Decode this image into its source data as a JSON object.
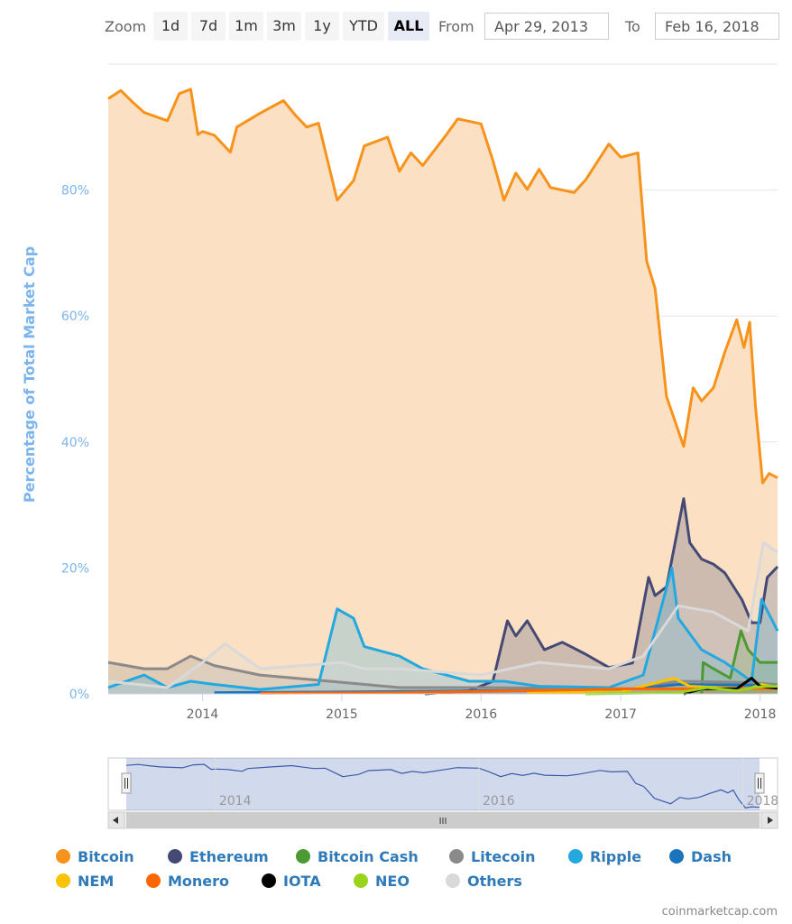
{
  "range_selector": {
    "zoom_label": "Zoom",
    "buttons": [
      "1d",
      "7d",
      "1m",
      "3m",
      "1y",
      "YTD",
      "ALL"
    ],
    "active": "ALL",
    "from_label": "From",
    "from_value": "Apr 29, 2013",
    "to_label": "To",
    "to_value": "Feb 16, 2018"
  },
  "credit": "coinmarketcap.com",
  "chart_data": {
    "type": "area",
    "title": "",
    "ylabel": "Percentage of Total Market Cap",
    "xlabel": "",
    "ylim": [
      0,
      100
    ],
    "xlim": [
      "2013-04-29",
      "2018-02-16"
    ],
    "y_ticks": [
      "0%",
      "20%",
      "40%",
      "60%",
      "80%"
    ],
    "y_tick_values": [
      0,
      20,
      40,
      60,
      80
    ],
    "x_ticks": [
      "2014",
      "2015",
      "2016",
      "2017",
      "2018"
    ],
    "navigator_ticks": [
      "2014",
      "2016",
      "2018"
    ],
    "grid": true,
    "legend_position": "bottom",
    "series": [
      {
        "name": "Bitcoin",
        "color": "#f7931a",
        "fill": "#fce0c3",
        "points": [
          [
            "2013-04-29",
            94.5
          ],
          [
            "2013-06-01",
            95.8
          ],
          [
            "2013-07-01",
            94
          ],
          [
            "2013-08-01",
            92.3
          ],
          [
            "2013-10-01",
            91
          ],
          [
            "2013-11-01",
            95.3
          ],
          [
            "2013-12-01",
            96
          ],
          [
            "2013-12-20",
            88.8
          ],
          [
            "2014-01-01",
            89.3
          ],
          [
            "2014-02-01",
            88.7
          ],
          [
            "2014-03-15",
            86
          ],
          [
            "2014-04-01",
            90
          ],
          [
            "2014-06-01",
            92.2
          ],
          [
            "2014-08-01",
            94.2
          ],
          [
            "2014-09-01",
            91.9
          ],
          [
            "2014-10-01",
            90
          ],
          [
            "2014-11-01",
            90.6
          ],
          [
            "2014-12-20",
            78.4
          ],
          [
            "2015-02-01",
            81.5
          ],
          [
            "2015-03-01",
            87
          ],
          [
            "2015-05-01",
            88.4
          ],
          [
            "2015-06-01",
            83
          ],
          [
            "2015-07-01",
            85.9
          ],
          [
            "2015-08-01",
            83.9
          ],
          [
            "2015-10-01",
            88.7
          ],
          [
            "2015-11-01",
            91.3
          ],
          [
            "2016-01-01",
            90.5
          ],
          [
            "2016-02-01",
            84.7
          ],
          [
            "2016-03-01",
            78.4
          ],
          [
            "2016-04-01",
            82.7
          ],
          [
            "2016-05-01",
            80.1
          ],
          [
            "2016-06-01",
            83.3
          ],
          [
            "2016-07-01",
            80.4
          ],
          [
            "2016-09-01",
            79.6
          ],
          [
            "2016-10-01",
            81.6
          ],
          [
            "2016-12-01",
            87.3
          ],
          [
            "2017-01-01",
            85.2
          ],
          [
            "2017-02-15",
            85.9
          ],
          [
            "2017-03-10",
            68.7
          ],
          [
            "2017-04-01",
            64.4
          ],
          [
            "2017-05-01",
            47.2
          ],
          [
            "2017-06-15",
            39.3
          ],
          [
            "2017-07-10",
            48.6
          ],
          [
            "2017-08-01",
            46.5
          ],
          [
            "2017-09-01",
            48.6
          ],
          [
            "2017-10-01",
            54.3
          ],
          [
            "2017-11-01",
            59.4
          ],
          [
            "2017-11-20",
            55
          ],
          [
            "2017-12-05",
            59
          ],
          [
            "2017-12-20",
            45.7
          ],
          [
            "2018-01-08",
            33.5
          ],
          [
            "2018-01-25",
            35
          ],
          [
            "2018-02-16",
            34.3
          ]
        ]
      },
      {
        "name": "Ethereum",
        "color": "#454a75",
        "fill": "rgba(69,74,117,0.25)",
        "points": [
          [
            "2015-08-07",
            0
          ],
          [
            "2015-12-01",
            0.5
          ],
          [
            "2016-02-01",
            2
          ],
          [
            "2016-03-10",
            11.6
          ],
          [
            "2016-04-01",
            9.2
          ],
          [
            "2016-05-01",
            11.6
          ],
          [
            "2016-06-15",
            7
          ],
          [
            "2016-08-01",
            8.2
          ],
          [
            "2016-10-01",
            6.3
          ],
          [
            "2016-12-01",
            4.2
          ],
          [
            "2017-02-01",
            4.9
          ],
          [
            "2017-03-15",
            18.5
          ],
          [
            "2017-04-01",
            15.6
          ],
          [
            "2017-05-01",
            17
          ],
          [
            "2017-06-15",
            31
          ],
          [
            "2017-07-01",
            24
          ],
          [
            "2017-08-01",
            21.4
          ],
          [
            "2017-09-01",
            20.6
          ],
          [
            "2017-10-01",
            19.2
          ],
          [
            "2017-11-15",
            14.9
          ],
          [
            "2017-12-10",
            11.3
          ],
          [
            "2018-01-01",
            11.3
          ],
          [
            "2018-01-20",
            18.5
          ],
          [
            "2018-02-16",
            20.2
          ]
        ]
      },
      {
        "name": "Bitcoin Cash",
        "color": "#4b9a33",
        "fill": "rgba(75,154,51,0.25)",
        "points": [
          [
            "2017-08-01",
            0
          ],
          [
            "2017-08-05",
            5
          ],
          [
            "2017-09-01",
            4
          ],
          [
            "2017-10-15",
            2.5
          ],
          [
            "2017-11-12",
            10
          ],
          [
            "2017-12-01",
            7
          ],
          [
            "2018-01-01",
            5
          ],
          [
            "2018-02-16",
            5
          ]
        ]
      },
      {
        "name": "Litecoin",
        "color": "#8a8a8a",
        "fill": "rgba(138,138,138,0.25)",
        "points": [
          [
            "2013-04-29",
            5
          ],
          [
            "2013-08-01",
            4
          ],
          [
            "2013-10-01",
            4
          ],
          [
            "2013-12-01",
            6
          ],
          [
            "2014-02-01",
            4.5
          ],
          [
            "2014-06-01",
            3
          ],
          [
            "2014-12-01",
            2
          ],
          [
            "2015-06-01",
            1
          ],
          [
            "2016-01-01",
            1
          ],
          [
            "2017-02-01",
            0.8
          ],
          [
            "2017-06-01",
            2
          ],
          [
            "2017-12-01",
            1.8
          ],
          [
            "2018-02-16",
            1.5
          ]
        ]
      },
      {
        "name": "Ripple",
        "color": "#23a8e0",
        "fill": "rgba(35,168,224,0.25)",
        "points": [
          [
            "2013-04-29",
            1
          ],
          [
            "2013-08-01",
            3
          ],
          [
            "2013-10-01",
            1
          ],
          [
            "2013-12-01",
            2
          ],
          [
            "2014-02-01",
            1.5
          ],
          [
            "2014-06-01",
            0.7
          ],
          [
            "2014-11-01",
            1.5
          ],
          [
            "2014-12-20",
            13.5
          ],
          [
            "2015-02-01",
            12
          ],
          [
            "2015-03-01",
            7.5
          ],
          [
            "2015-06-01",
            6
          ],
          [
            "2015-08-01",
            4
          ],
          [
            "2015-12-01",
            2
          ],
          [
            "2016-03-01",
            2
          ],
          [
            "2016-06-01",
            1.2
          ],
          [
            "2016-12-01",
            1
          ],
          [
            "2017-03-01",
            3
          ],
          [
            "2017-05-15",
            20
          ],
          [
            "2017-06-01",
            12
          ],
          [
            "2017-08-01",
            7
          ],
          [
            "2017-10-01",
            5
          ],
          [
            "2017-12-10",
            2
          ],
          [
            "2018-01-05",
            15
          ],
          [
            "2018-02-16",
            10
          ]
        ]
      },
      {
        "name": "Dash",
        "color": "#1c75bc",
        "fill": "rgba(28,117,188,0.2)",
        "points": [
          [
            "2014-02-01",
            0.2
          ],
          [
            "2015-01-01",
            0.3
          ],
          [
            "2016-01-01",
            0.5
          ],
          [
            "2017-01-01",
            0.6
          ],
          [
            "2017-06-01",
            1.5
          ],
          [
            "2017-12-01",
            1.4
          ],
          [
            "2018-02-16",
            1.2
          ]
        ]
      },
      {
        "name": "NEM",
        "color": "#f9c300",
        "fill": "rgba(249,195,0,0.2)",
        "points": [
          [
            "2016-05-01",
            0.2
          ],
          [
            "2017-01-01",
            0.3
          ],
          [
            "2017-05-20",
            2.5
          ],
          [
            "2017-07-01",
            1.2
          ],
          [
            "2017-12-01",
            0.8
          ],
          [
            "2018-01-05",
            1.5
          ],
          [
            "2018-02-16",
            1
          ]
        ]
      },
      {
        "name": "Monero",
        "color": "#ff6600",
        "fill": "rgba(255,102,0,0.2)",
        "points": [
          [
            "2014-06-01",
            0.1
          ],
          [
            "2015-06-01",
            0.2
          ],
          [
            "2016-08-01",
            0.6
          ],
          [
            "2017-01-01",
            0.8
          ],
          [
            "2017-08-01",
            0.8
          ],
          [
            "2018-02-16",
            0.9
          ]
        ]
      },
      {
        "name": "IOTA",
        "color": "#000000",
        "fill": "rgba(0,0,0,0.1)",
        "points": [
          [
            "2017-06-15",
            0
          ],
          [
            "2017-08-01",
            0.8
          ],
          [
            "2017-11-01",
            0.8
          ],
          [
            "2017-12-10",
            2.5
          ],
          [
            "2018-01-01",
            1.2
          ],
          [
            "2018-02-16",
            0.9
          ]
        ]
      },
      {
        "name": "NEO",
        "color": "#9ad31c",
        "fill": "rgba(154,211,28,0.2)",
        "points": [
          [
            "2016-10-01",
            0
          ],
          [
            "2017-06-01",
            0.2
          ],
          [
            "2017-08-15",
            1
          ],
          [
            "2017-11-01",
            0.5
          ],
          [
            "2017-12-15",
            1
          ],
          [
            "2018-01-15",
            1.2
          ],
          [
            "2018-02-16",
            1.2
          ]
        ]
      },
      {
        "name": "Others",
        "color": "#d9d9d9",
        "fill": "rgba(217,217,217,0.25)",
        "points": [
          [
            "2013-04-29",
            2
          ],
          [
            "2013-10-01",
            1
          ],
          [
            "2014-01-01",
            5
          ],
          [
            "2014-03-01",
            8
          ],
          [
            "2014-06-01",
            4
          ],
          [
            "2015-01-01",
            5
          ],
          [
            "2015-03-01",
            4
          ],
          [
            "2015-06-01",
            4
          ],
          [
            "2016-01-01",
            3
          ],
          [
            "2016-06-01",
            5
          ],
          [
            "2016-12-01",
            4
          ],
          [
            "2017-03-01",
            6
          ],
          [
            "2017-06-01",
            14
          ],
          [
            "2017-09-01",
            13
          ],
          [
            "2017-12-01",
            10
          ],
          [
            "2018-01-10",
            24
          ],
          [
            "2018-02-16",
            22.5
          ]
        ]
      }
    ]
  }
}
